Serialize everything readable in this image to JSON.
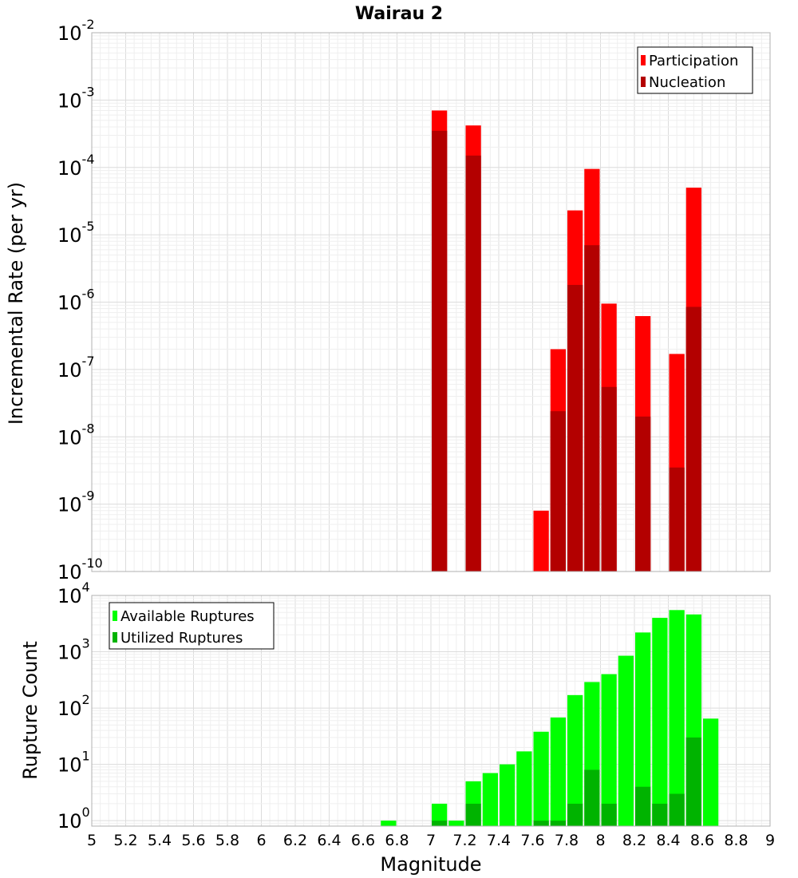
{
  "chart_data": [
    {
      "id": "top",
      "type": "bar",
      "title": "Wairau 2",
      "xlabel": "",
      "ylabel": "Incremental Rate (per yr)",
      "yscale": "log",
      "ylim": [
        1e-10,
        0.01
      ],
      "xlim": [
        5,
        9
      ],
      "bar_width": 0.1,
      "y_ticks": [
        {
          "base": "10",
          "exp": "-10"
        },
        {
          "base": "10",
          "exp": "-9"
        },
        {
          "base": "10",
          "exp": "-8"
        },
        {
          "base": "10",
          "exp": "-7"
        },
        {
          "base": "10",
          "exp": "-6"
        },
        {
          "base": "10",
          "exp": "-5"
        },
        {
          "base": "10",
          "exp": "-4"
        },
        {
          "base": "10",
          "exp": "-3"
        },
        {
          "base": "10",
          "exp": "-2"
        }
      ],
      "legend": "top-right",
      "series": [
        {
          "name": "Participation",
          "color": "#ff0000",
          "x": [
            7.05,
            7.25,
            7.65,
            7.75,
            7.85,
            7.95,
            8.05,
            8.25,
            8.45,
            8.55
          ],
          "values": [
            0.0007,
            0.00042,
            8e-10,
            2e-07,
            2.3e-05,
            9.5e-05,
            9.5e-07,
            6.2e-07,
            1.7e-07,
            5e-05
          ]
        },
        {
          "name": "Nucleation",
          "color": "#b30000",
          "x": [
            7.05,
            7.25,
            7.75,
            7.85,
            7.95,
            8.05,
            8.25,
            8.45,
            8.55
          ],
          "values": [
            0.00035,
            0.00015,
            2.4e-08,
            1.8e-06,
            7e-06,
            5.5e-08,
            2e-08,
            3.5e-09,
            8.5e-07
          ]
        }
      ]
    },
    {
      "id": "bottom",
      "type": "bar",
      "title": "",
      "xlabel": "Magnitude",
      "ylabel": "Rupture Count",
      "yscale": "log",
      "ylim": [
        0.8,
        10000
      ],
      "xlim": [
        5,
        9
      ],
      "bar_width": 0.1,
      "x_ticks": [
        "5",
        "5.2",
        "5.4",
        "5.6",
        "5.8",
        "6",
        "6.2",
        "6.4",
        "6.6",
        "6.8",
        "7",
        "7.2",
        "7.4",
        "7.6",
        "7.8",
        "8",
        "8.2",
        "8.4",
        "8.6",
        "8.8",
        "9"
      ],
      "y_ticks": [
        {
          "base": "10",
          "exp": "0"
        },
        {
          "base": "10",
          "exp": "1"
        },
        {
          "base": "10",
          "exp": "2"
        },
        {
          "base": "10",
          "exp": "3"
        },
        {
          "base": "10",
          "exp": "4"
        }
      ],
      "legend": "top-left",
      "series": [
        {
          "name": "Available Ruptures",
          "color": "#00ff00",
          "x": [
            6.75,
            7.05,
            7.15,
            7.25,
            7.35,
            7.45,
            7.55,
            7.65,
            7.75,
            7.85,
            7.95,
            8.05,
            8.15,
            8.25,
            8.35,
            8.45,
            8.55,
            8.65
          ],
          "values": [
            1,
            2,
            1,
            5,
            7,
            10,
            17,
            38,
            68,
            170,
            290,
            400,
            850,
            2200,
            4000,
            5500,
            4600,
            65
          ]
        },
        {
          "name": "Utilized Ruptures",
          "color": "#00b300",
          "x": [
            7.05,
            7.25,
            7.65,
            7.75,
            7.85,
            7.95,
            8.05,
            8.25,
            8.35,
            8.45,
            8.55
          ],
          "values": [
            1,
            2,
            1,
            1,
            2,
            8,
            2,
            4,
            2,
            3,
            30
          ]
        }
      ]
    }
  ]
}
